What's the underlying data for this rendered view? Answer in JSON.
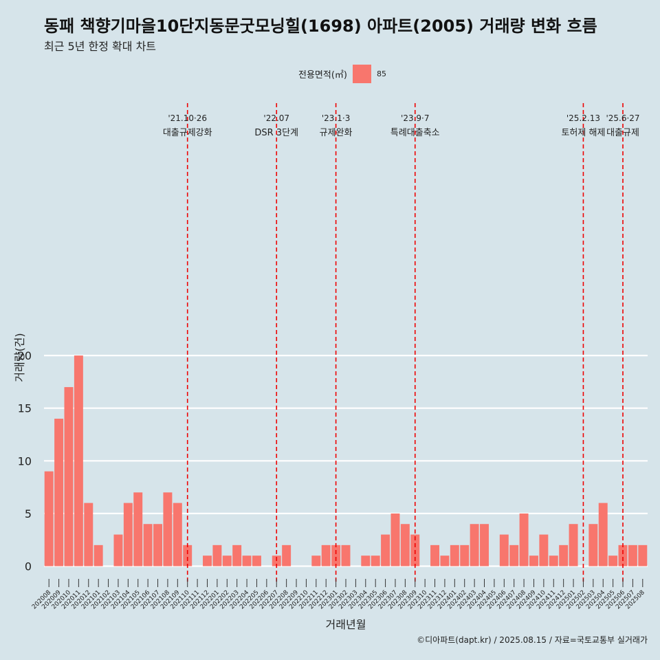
{
  "title": "동패 책향기마을10단지동문굿모닝힐(1698) 아파트(2005) 거래량 변화 흐름",
  "subtitle": "최근 5년 한정 확대 차트",
  "caption": "©디아파트(dapt.kr) / 2025.08.15 / 자료=국토교통부 실거래가",
  "legend": {
    "title": "전용면적(㎡)",
    "key": "85",
    "color": "#f8766d"
  },
  "chart_data": {
    "type": "bar",
    "xlabel": "거래년월",
    "ylabel": "거래량(건)",
    "ylim": [
      0,
      21
    ],
    "yticks": [
      0,
      5,
      10,
      15,
      20
    ],
    "grid": true,
    "legend_position": "top",
    "categories": [
      "202008",
      "202009",
      "202010",
      "202011",
      "202012",
      "202101",
      "202102",
      "202103",
      "202104",
      "202105",
      "202106",
      "202107",
      "202108",
      "202109",
      "202110",
      "202111",
      "202112",
      "202201",
      "202202",
      "202203",
      "202204",
      "202205",
      "202206",
      "202207",
      "202208",
      "202209",
      "202210",
      "202211",
      "202212",
      "202301",
      "202302",
      "202303",
      "202304",
      "202305",
      "202306",
      "202307",
      "202308",
      "202309",
      "202310",
      "202311",
      "202312",
      "202401",
      "202402",
      "202403",
      "202404",
      "202405",
      "202406",
      "202407",
      "202408",
      "202409",
      "202410",
      "202411",
      "202412",
      "202501",
      "202502",
      "202503",
      "202504",
      "202505",
      "202506",
      "202507",
      "202508"
    ],
    "series": [
      {
        "name": "85",
        "color": "#f8766d",
        "values": [
          9,
          14,
          17,
          20,
          6,
          2,
          0,
          3,
          6,
          7,
          4,
          4,
          7,
          6,
          2,
          0,
          1,
          2,
          1,
          2,
          1,
          1,
          0,
          1,
          2,
          0,
          0,
          1,
          2,
          2,
          2,
          0,
          1,
          1,
          3,
          5,
          4,
          3,
          0,
          2,
          1,
          2,
          2,
          4,
          4,
          0,
          3,
          2,
          5,
          1,
          3,
          1,
          2,
          4,
          0,
          4,
          6,
          1,
          2,
          2,
          2
        ]
      }
    ],
    "annotations": [
      {
        "date": "'21.10·26",
        "label": "대출규제강화",
        "category": "202110"
      },
      {
        "date": "'22.07",
        "label": "DSR 3단계",
        "category": "202207"
      },
      {
        "date": "'23.1·3",
        "label": "규제완화",
        "category": "202301"
      },
      {
        "date": "'23.9·7",
        "label": "특례대출축소",
        "category": "202309"
      },
      {
        "date": "'25.2.13",
        "label": "토허제 해제",
        "category": "202502"
      },
      {
        "date": "'25.6·27",
        "label": "대출규제",
        "category": "202506"
      }
    ]
  }
}
